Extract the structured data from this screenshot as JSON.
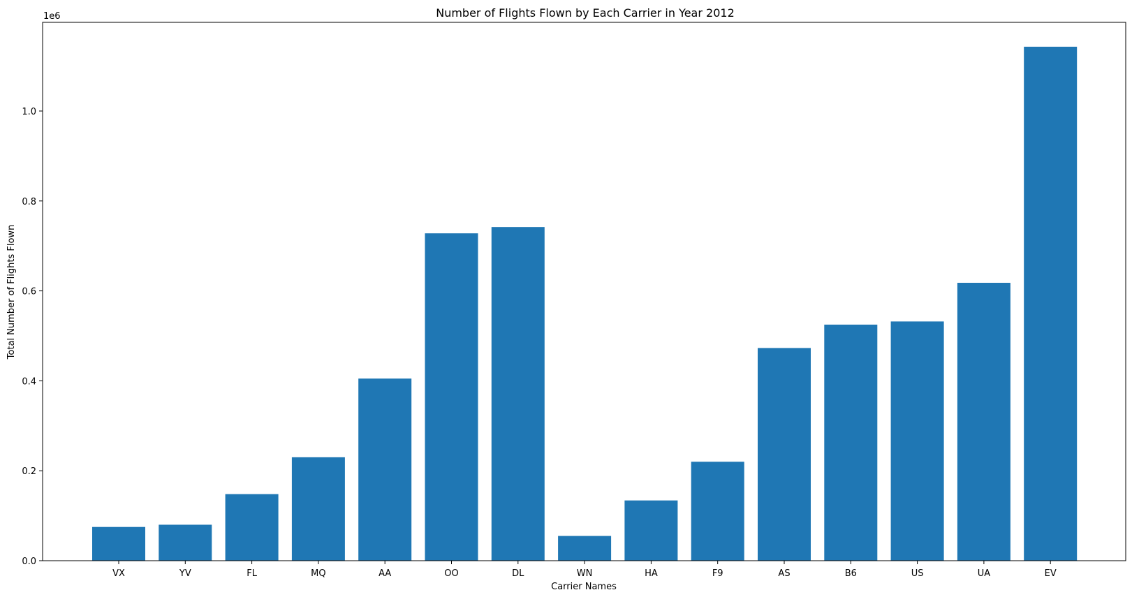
{
  "chart_data": {
    "type": "bar",
    "title": "Number of Flights Flown by Each Carrier in Year 2012",
    "xlabel": "Carrier Names",
    "ylabel": "Total Number of Flights Flown",
    "y_offset_label": "1e6",
    "ylim": [
      0,
      1.2
    ],
    "yticks": [
      "0.0",
      "0.2",
      "0.4",
      "0.6",
      "0.8",
      "1.0"
    ],
    "categories": [
      "VX",
      "YV",
      "FL",
      "MQ",
      "AA",
      "OO",
      "DL",
      "WN",
      "HA",
      "F9",
      "AS",
      "B6",
      "US",
      "UA",
      "EV"
    ],
    "values": [
      0.075,
      0.08,
      0.148,
      0.23,
      0.405,
      0.728,
      0.742,
      0.055,
      0.134,
      0.22,
      0.473,
      0.525,
      0.532,
      0.618,
      1.143
    ],
    "bar_color": "#1f77b4",
    "grid": false
  }
}
